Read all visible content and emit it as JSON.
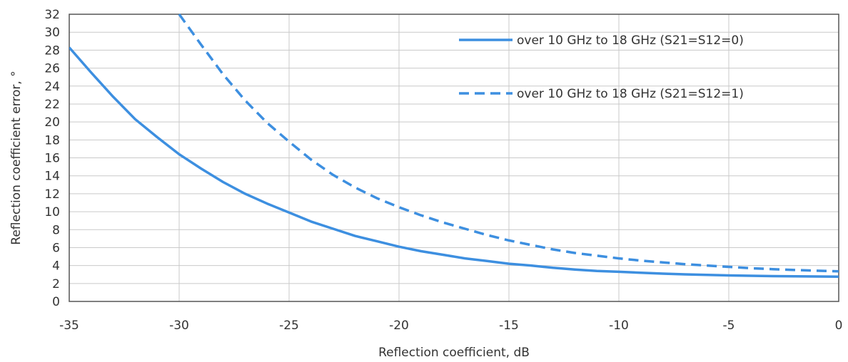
{
  "chart_data": {
    "type": "line",
    "xlabel": "Reflection coefficient, dB",
    "ylabel": "Reflection coefficient error, °",
    "xlim": [
      -35,
      0
    ],
    "ylim": [
      0,
      32
    ],
    "xticks": [
      -35,
      -30,
      -25,
      -20,
      -15,
      -10,
      -5,
      0
    ],
    "yticks": [
      0,
      2,
      4,
      6,
      8,
      10,
      12,
      14,
      16,
      18,
      20,
      22,
      24,
      26,
      28,
      30,
      32
    ],
    "grid": true,
    "legend_position": "top-right",
    "series": [
      {
        "name": "over 10 GHz to 18 GHz (S21=S12=0)",
        "style": "solid",
        "color": "#3d8fe0",
        "x": [
          -35,
          -34,
          -33,
          -32,
          -31,
          -30,
          -29,
          -28,
          -27,
          -26,
          -25,
          -24,
          -23,
          -22,
          -21,
          -20,
          -19,
          -18,
          -17,
          -16,
          -15,
          -14,
          -13,
          -12,
          -11,
          -10,
          -9,
          -8,
          -7,
          -6,
          -5,
          -4,
          -3,
          -2,
          -1,
          0
        ],
        "y": [
          28.3,
          25.5,
          22.8,
          20.3,
          18.3,
          16.4,
          14.8,
          13.3,
          12.0,
          10.9,
          9.9,
          8.9,
          8.1,
          7.3,
          6.7,
          6.1,
          5.6,
          5.2,
          4.8,
          4.5,
          4.2,
          4.0,
          3.75,
          3.55,
          3.4,
          3.3,
          3.2,
          3.1,
          3.02,
          2.96,
          2.9,
          2.86,
          2.82,
          2.8,
          2.78,
          2.76
        ]
      },
      {
        "name": "over 10 GHz to 18 GHz (S21=S12=1)",
        "style": "dashed",
        "color": "#3d8fe0",
        "x": [
          -30,
          -29,
          -28,
          -27,
          -26,
          -25,
          -24,
          -23,
          -22,
          -21,
          -20,
          -19,
          -18,
          -17,
          -16,
          -15,
          -14,
          -13,
          -12,
          -11,
          -10,
          -9,
          -8,
          -7,
          -6,
          -5,
          -4,
          -3,
          -2,
          -1,
          0
        ],
        "y": [
          32.0,
          28.6,
          25.3,
          22.4,
          19.9,
          17.8,
          15.8,
          14.1,
          12.7,
          11.5,
          10.5,
          9.6,
          8.8,
          8.1,
          7.4,
          6.8,
          6.3,
          5.8,
          5.4,
          5.1,
          4.8,
          4.55,
          4.35,
          4.15,
          4.0,
          3.85,
          3.7,
          3.6,
          3.5,
          3.42,
          3.35
        ]
      }
    ]
  }
}
